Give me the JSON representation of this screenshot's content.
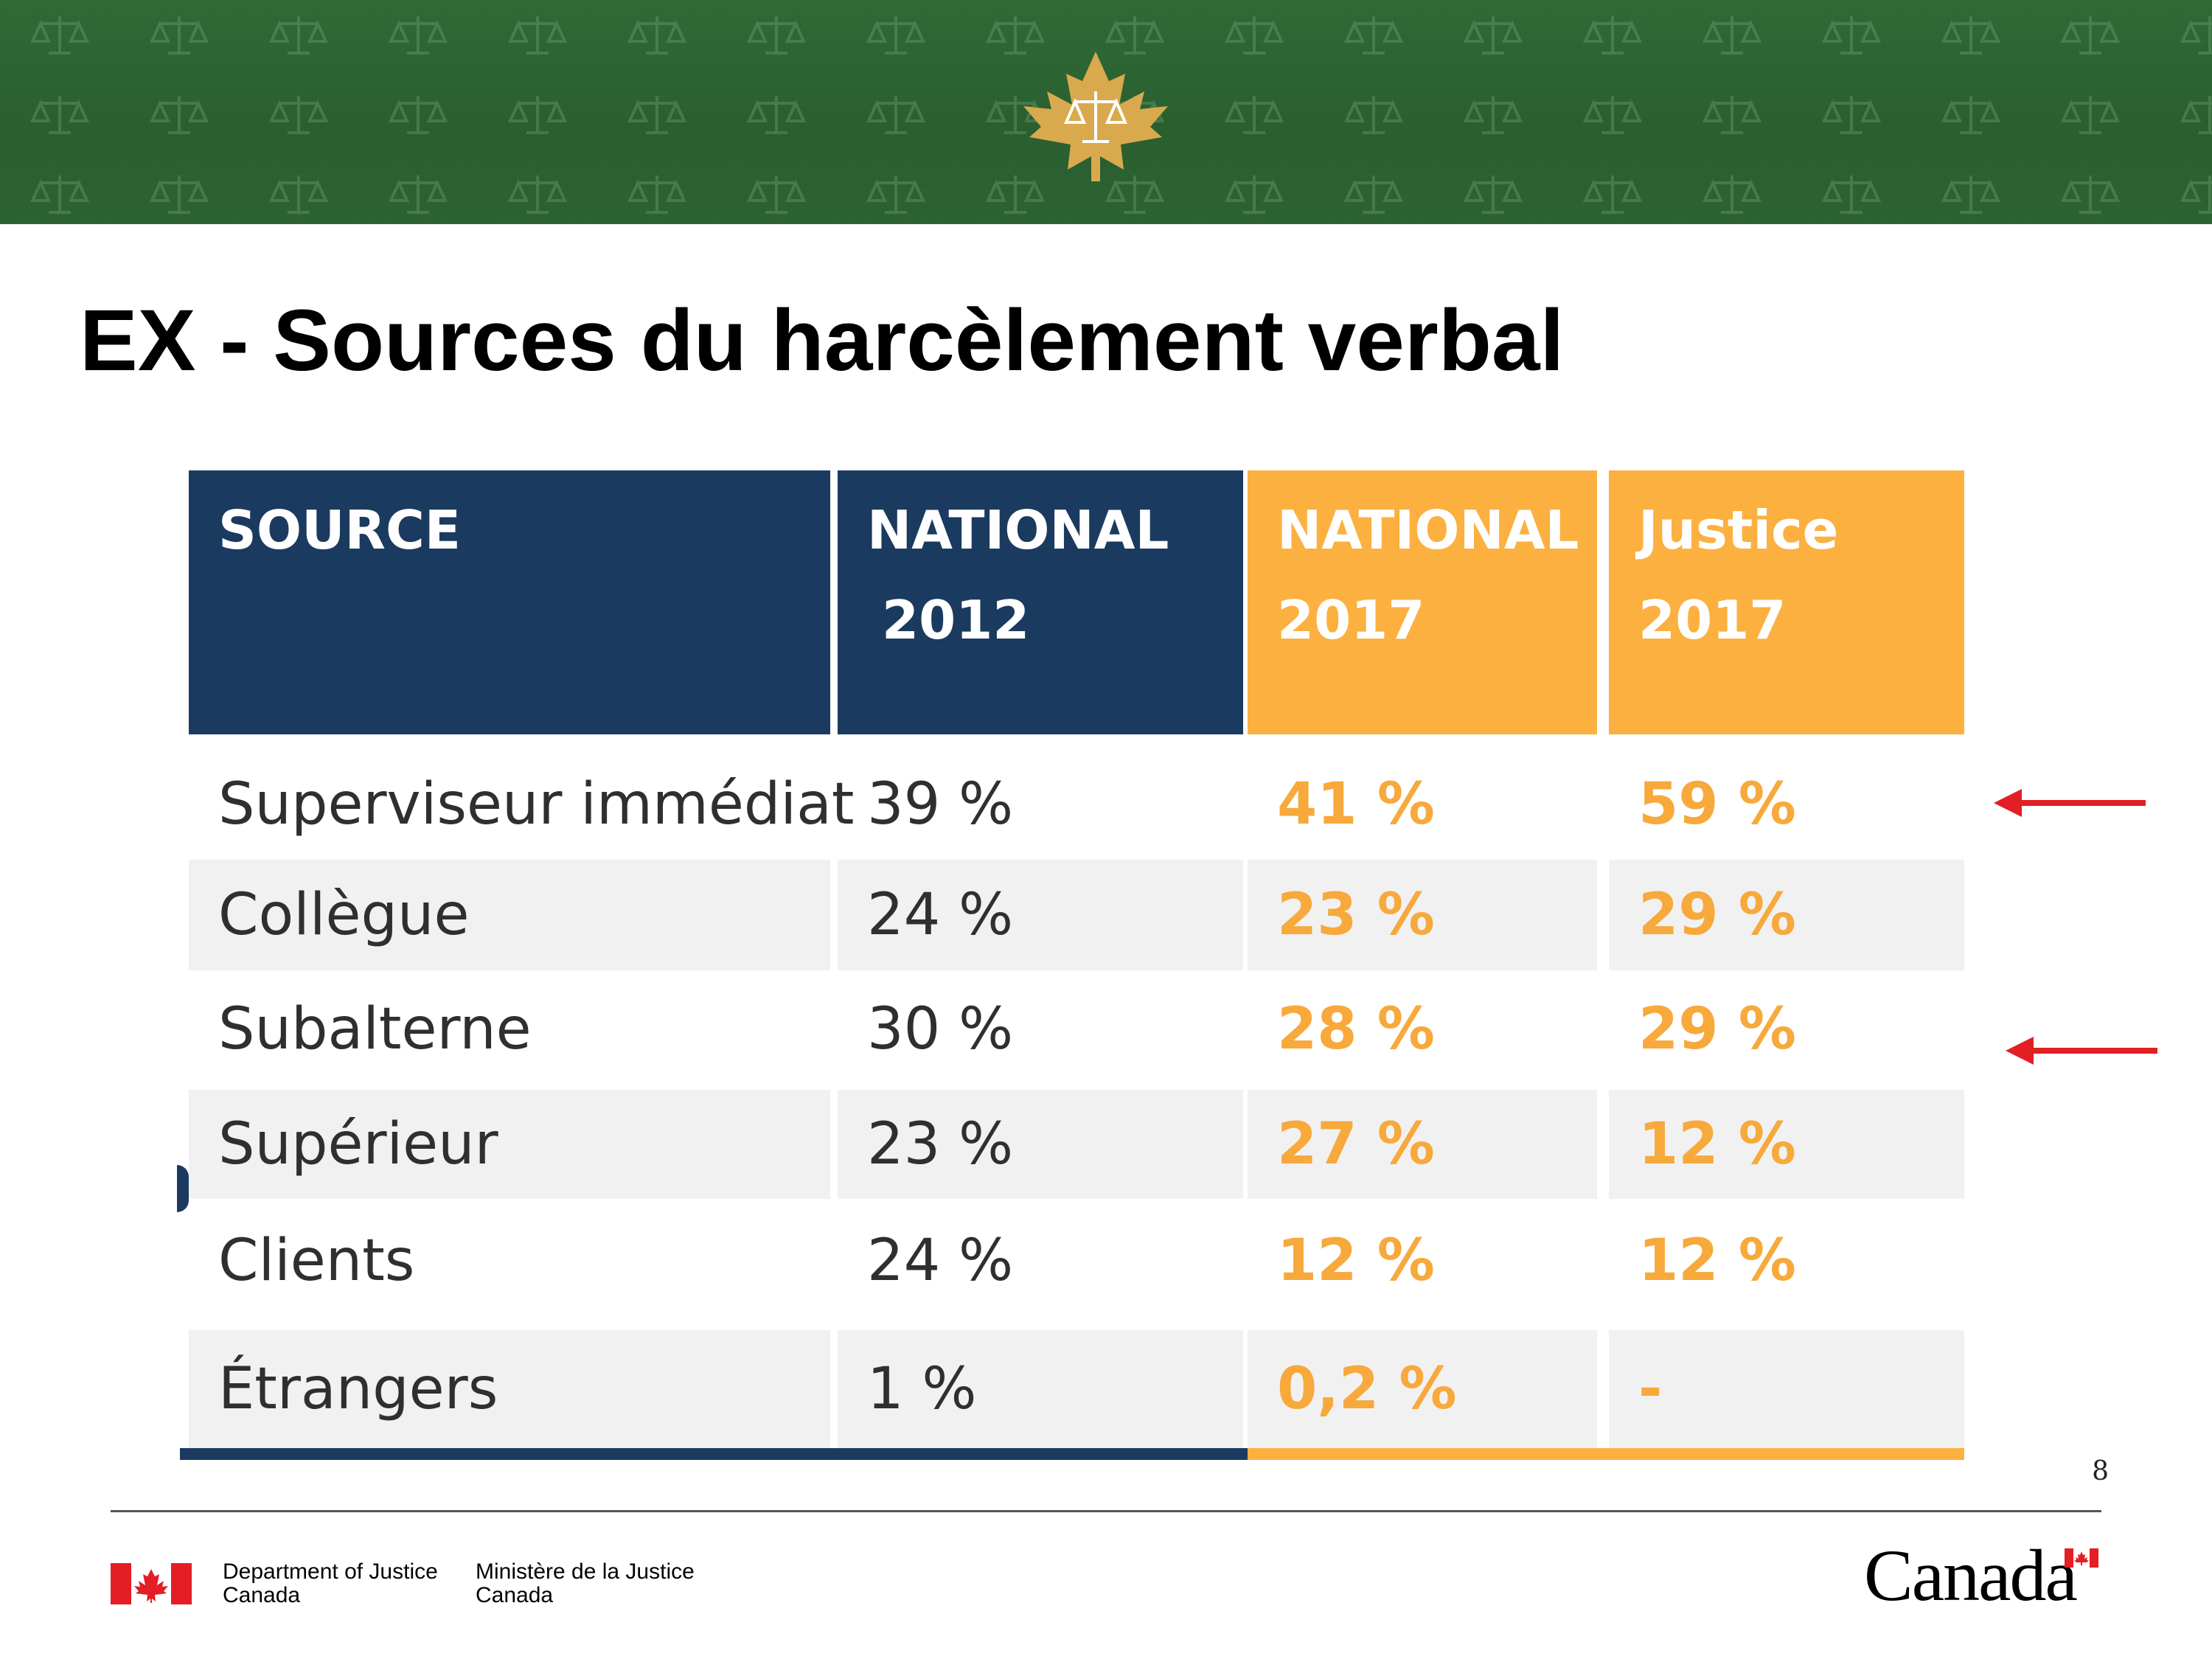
{
  "slide": {
    "title": "EX - Sources du harcèlement verbal",
    "page_number": "8"
  },
  "colors": {
    "banner_green": "#2c6332",
    "emblem_gold": "#d9a94d",
    "navy": "#1b3a5f",
    "orange": "#fbb040",
    "orange_text": "#f7a93c",
    "shaded_row": "#f1f1f2",
    "arrow_red": "#e31e24"
  },
  "banner": {
    "pattern_icon": "scales-of-justice-icon",
    "emblem_icon": "maple-leaf-scales-emblem-icon"
  },
  "table": {
    "headers": [
      {
        "line1": "SOURCE",
        "line2": ""
      },
      {
        "line1": "NATIONAL",
        "line2": "2012"
      },
      {
        "line1": "NATIONAL",
        "line2": "2017"
      },
      {
        "line1": "Justice",
        "line2": "2017"
      }
    ],
    "rows": [
      {
        "source": "Superviseur immédiat",
        "national_2012": "39 %",
        "national_2017": "41 %",
        "justice_2017": "59 %"
      },
      {
        "source": "Collègue",
        "national_2012": "24 %",
        "national_2017": "23 %",
        "justice_2017": "29 %"
      },
      {
        "source": "Subalterne",
        "national_2012": "30 %",
        "national_2017": "28 %",
        "justice_2017": "29 %"
      },
      {
        "source": "Supérieur",
        "national_2012": "23 %",
        "national_2017": "27 %",
        "justice_2017": "12 %"
      },
      {
        "source": "Clients",
        "national_2012": "24 %",
        "national_2017": "12 %",
        "justice_2017": "12 %"
      },
      {
        "source": "Étrangers",
        "national_2012": "1 %",
        "national_2017": "0,2 %",
        "justice_2017": "-"
      }
    ]
  },
  "annotations": {
    "arrow_icon": "left-arrow-icon",
    "highlighted_rows": [
      "Superviseur immédiat",
      "Subalterne"
    ]
  },
  "footer": {
    "flag_icon": "canada-flag-icon",
    "department_en_line1": "Department of Justice",
    "department_en_line2": "Canada",
    "department_fr_line1": "Ministère de la Justice",
    "department_fr_line2": "Canada",
    "wordmark": "Canada"
  }
}
